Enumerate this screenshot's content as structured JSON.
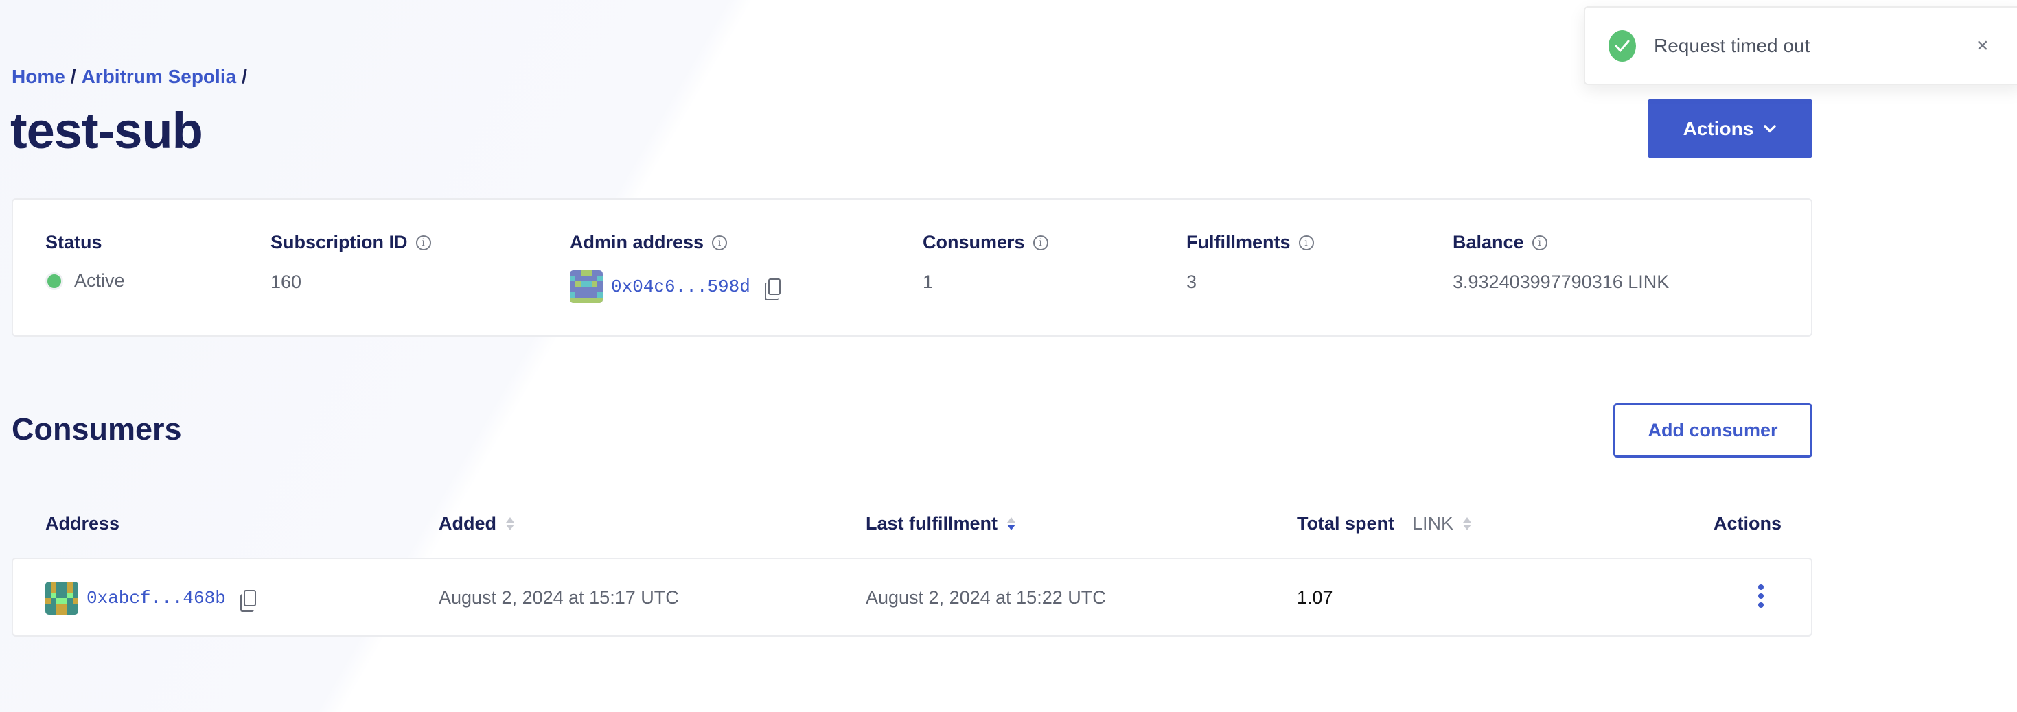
{
  "breadcrumb": {
    "items": [
      "Home",
      "Arbitrum Sepolia"
    ],
    "separator": "/"
  },
  "page": {
    "title": "test-sub"
  },
  "header": {
    "actions_label": "Actions"
  },
  "toast": {
    "message": "Request timed out",
    "icon": "check-circle-icon",
    "close": "×"
  },
  "summary": {
    "status": {
      "label": "Status",
      "value": "Active",
      "color": "#5ac274"
    },
    "subscription_id": {
      "label": "Subscription ID",
      "value": "160"
    },
    "admin_address": {
      "label": "Admin address",
      "value": "0x04c6...598d"
    },
    "consumers": {
      "label": "Consumers",
      "value": "1"
    },
    "fulfillments": {
      "label": "Fulfillments",
      "value": "3"
    },
    "balance": {
      "label": "Balance",
      "value": "3.932403997790316 LINK"
    },
    "info_glyph": "i"
  },
  "consumers": {
    "title": "Consumers",
    "add_label": "Add consumer",
    "columns": {
      "address": "Address",
      "added": "Added",
      "last_fulfillment": "Last fulfillment",
      "total_spent": "Total spent",
      "total_spent_unit": "LINK",
      "actions": "Actions"
    },
    "sort": {
      "column": "Last fulfillment",
      "direction": "descending"
    },
    "rows": [
      {
        "address": "0xabcf...468b",
        "added": "August 2, 2024 at 15:17 UTC",
        "last_fulfillment": "August 2, 2024 at 15:22 UTC",
        "total_spent": "1.07"
      }
    ]
  },
  "colors": {
    "accent": "#3f5acb",
    "heading": "#1a2158",
    "success": "#5ac274"
  }
}
